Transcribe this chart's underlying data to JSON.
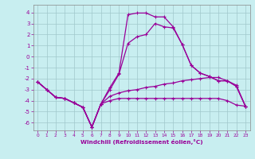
{
  "xlabel": "Windchill (Refroidissement éolien,°C)",
  "background_color": "#c8eef0",
  "grid_color": "#b8dde0",
  "line_color": "#990099",
  "xlim": [
    -0.5,
    23.5
  ],
  "ylim": [
    -6.7,
    4.7
  ],
  "xticks": [
    0,
    1,
    2,
    3,
    4,
    5,
    6,
    7,
    8,
    9,
    10,
    11,
    12,
    13,
    14,
    15,
    16,
    17,
    18,
    19,
    20,
    21,
    22,
    23
  ],
  "yticks": [
    -6,
    -5,
    -4,
    -3,
    -2,
    -1,
    0,
    1,
    2,
    3,
    4
  ],
  "curve1_x": [
    0,
    1,
    2,
    3,
    4,
    5,
    6,
    7,
    8,
    9,
    10,
    11,
    12,
    13,
    14,
    15,
    16,
    17,
    18,
    19,
    20,
    21,
    22,
    23
  ],
  "curve1_y": [
    -2.3,
    -3.0,
    -3.7,
    -3.8,
    -4.2,
    -4.6,
    -6.4,
    -4.3,
    -4.0,
    -3.8,
    -3.8,
    -3.8,
    -3.8,
    -3.8,
    -3.8,
    -3.8,
    -3.8,
    -3.8,
    -3.8,
    -3.8,
    -3.8,
    -4.0,
    -4.4,
    -4.5
  ],
  "curve2_x": [
    0,
    1,
    2,
    3,
    4,
    5,
    6,
    7,
    8,
    9,
    10,
    11,
    12,
    13,
    14,
    15,
    16,
    17,
    18,
    19,
    20,
    21,
    22,
    23
  ],
  "curve2_y": [
    -2.3,
    -3.0,
    -3.7,
    -3.8,
    -4.2,
    -4.6,
    -6.4,
    -4.3,
    -3.6,
    -3.3,
    -3.1,
    -3.0,
    -2.8,
    -2.7,
    -2.5,
    -2.4,
    -2.2,
    -2.1,
    -2.0,
    -1.9,
    -1.9,
    -2.2,
    -2.6,
    -4.5
  ],
  "curve3_x": [
    0,
    1,
    2,
    3,
    4,
    5,
    6,
    7,
    8,
    9,
    10,
    11,
    12,
    13,
    14,
    15,
    16,
    17,
    18,
    19,
    20,
    21,
    22,
    23
  ],
  "curve3_y": [
    -2.3,
    -3.0,
    -3.7,
    -3.8,
    -4.2,
    -4.6,
    -6.4,
    -4.3,
    -3.0,
    -1.6,
    1.2,
    1.8,
    2.0,
    3.0,
    2.7,
    2.6,
    1.1,
    -0.8,
    -1.5,
    -1.8,
    -2.2,
    -2.2,
    -2.7,
    -4.5
  ],
  "curve4_x": [
    0,
    1,
    2,
    3,
    4,
    5,
    6,
    7,
    8,
    9,
    10,
    11,
    12,
    13,
    14,
    15,
    16,
    17,
    18,
    19,
    20,
    21,
    22,
    23
  ],
  "curve4_y": [
    -2.3,
    -3.0,
    -3.7,
    -3.8,
    -4.2,
    -4.6,
    -6.4,
    -4.3,
    -2.8,
    -1.5,
    3.8,
    3.95,
    3.95,
    3.6,
    3.6,
    2.7,
    1.1,
    -0.8,
    -1.5,
    -1.8,
    -2.2,
    -2.2,
    -2.7,
    -4.5
  ]
}
